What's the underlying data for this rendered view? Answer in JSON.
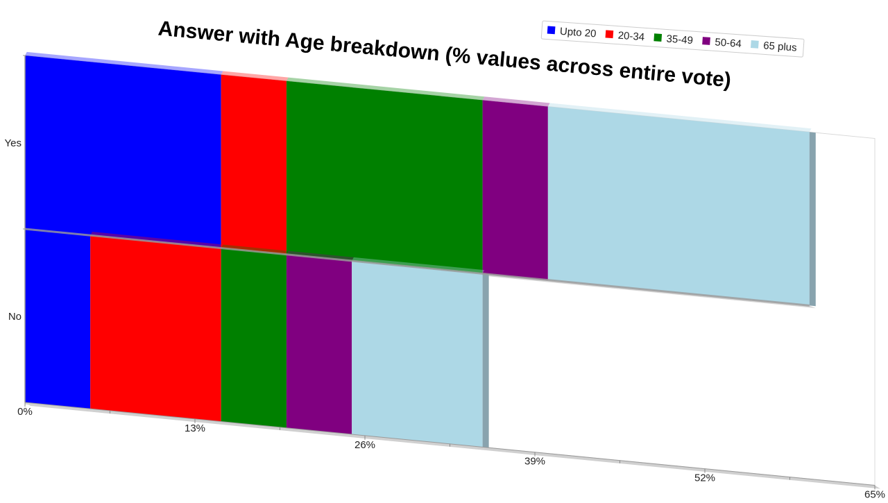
{
  "chart_data": {
    "type": "bar",
    "orientation": "horizontal",
    "stacked": true,
    "title": "Answer with Age breakdown (% values across entire vote)",
    "categories": [
      "Yes",
      "No"
    ],
    "series": [
      {
        "name": "Upto 20",
        "color": "#0000ff",
        "values": [
          15,
          5
        ]
      },
      {
        "name": "20-34",
        "color": "#ff0000",
        "values": [
          5,
          10
        ]
      },
      {
        "name": "35-49",
        "color": "#008000",
        "values": [
          15,
          5
        ]
      },
      {
        "name": "50-64",
        "color": "#800080",
        "values": [
          5,
          5
        ]
      },
      {
        "name": "65 plus",
        "color": "#add8e6",
        "values": [
          20,
          10
        ]
      }
    ],
    "x_ticks": [
      "0%",
      "13%",
      "26%",
      "39%",
      "52%",
      "65%"
    ],
    "xlim": [
      0,
      65
    ],
    "legend_position": "top-right",
    "grid": false
  }
}
